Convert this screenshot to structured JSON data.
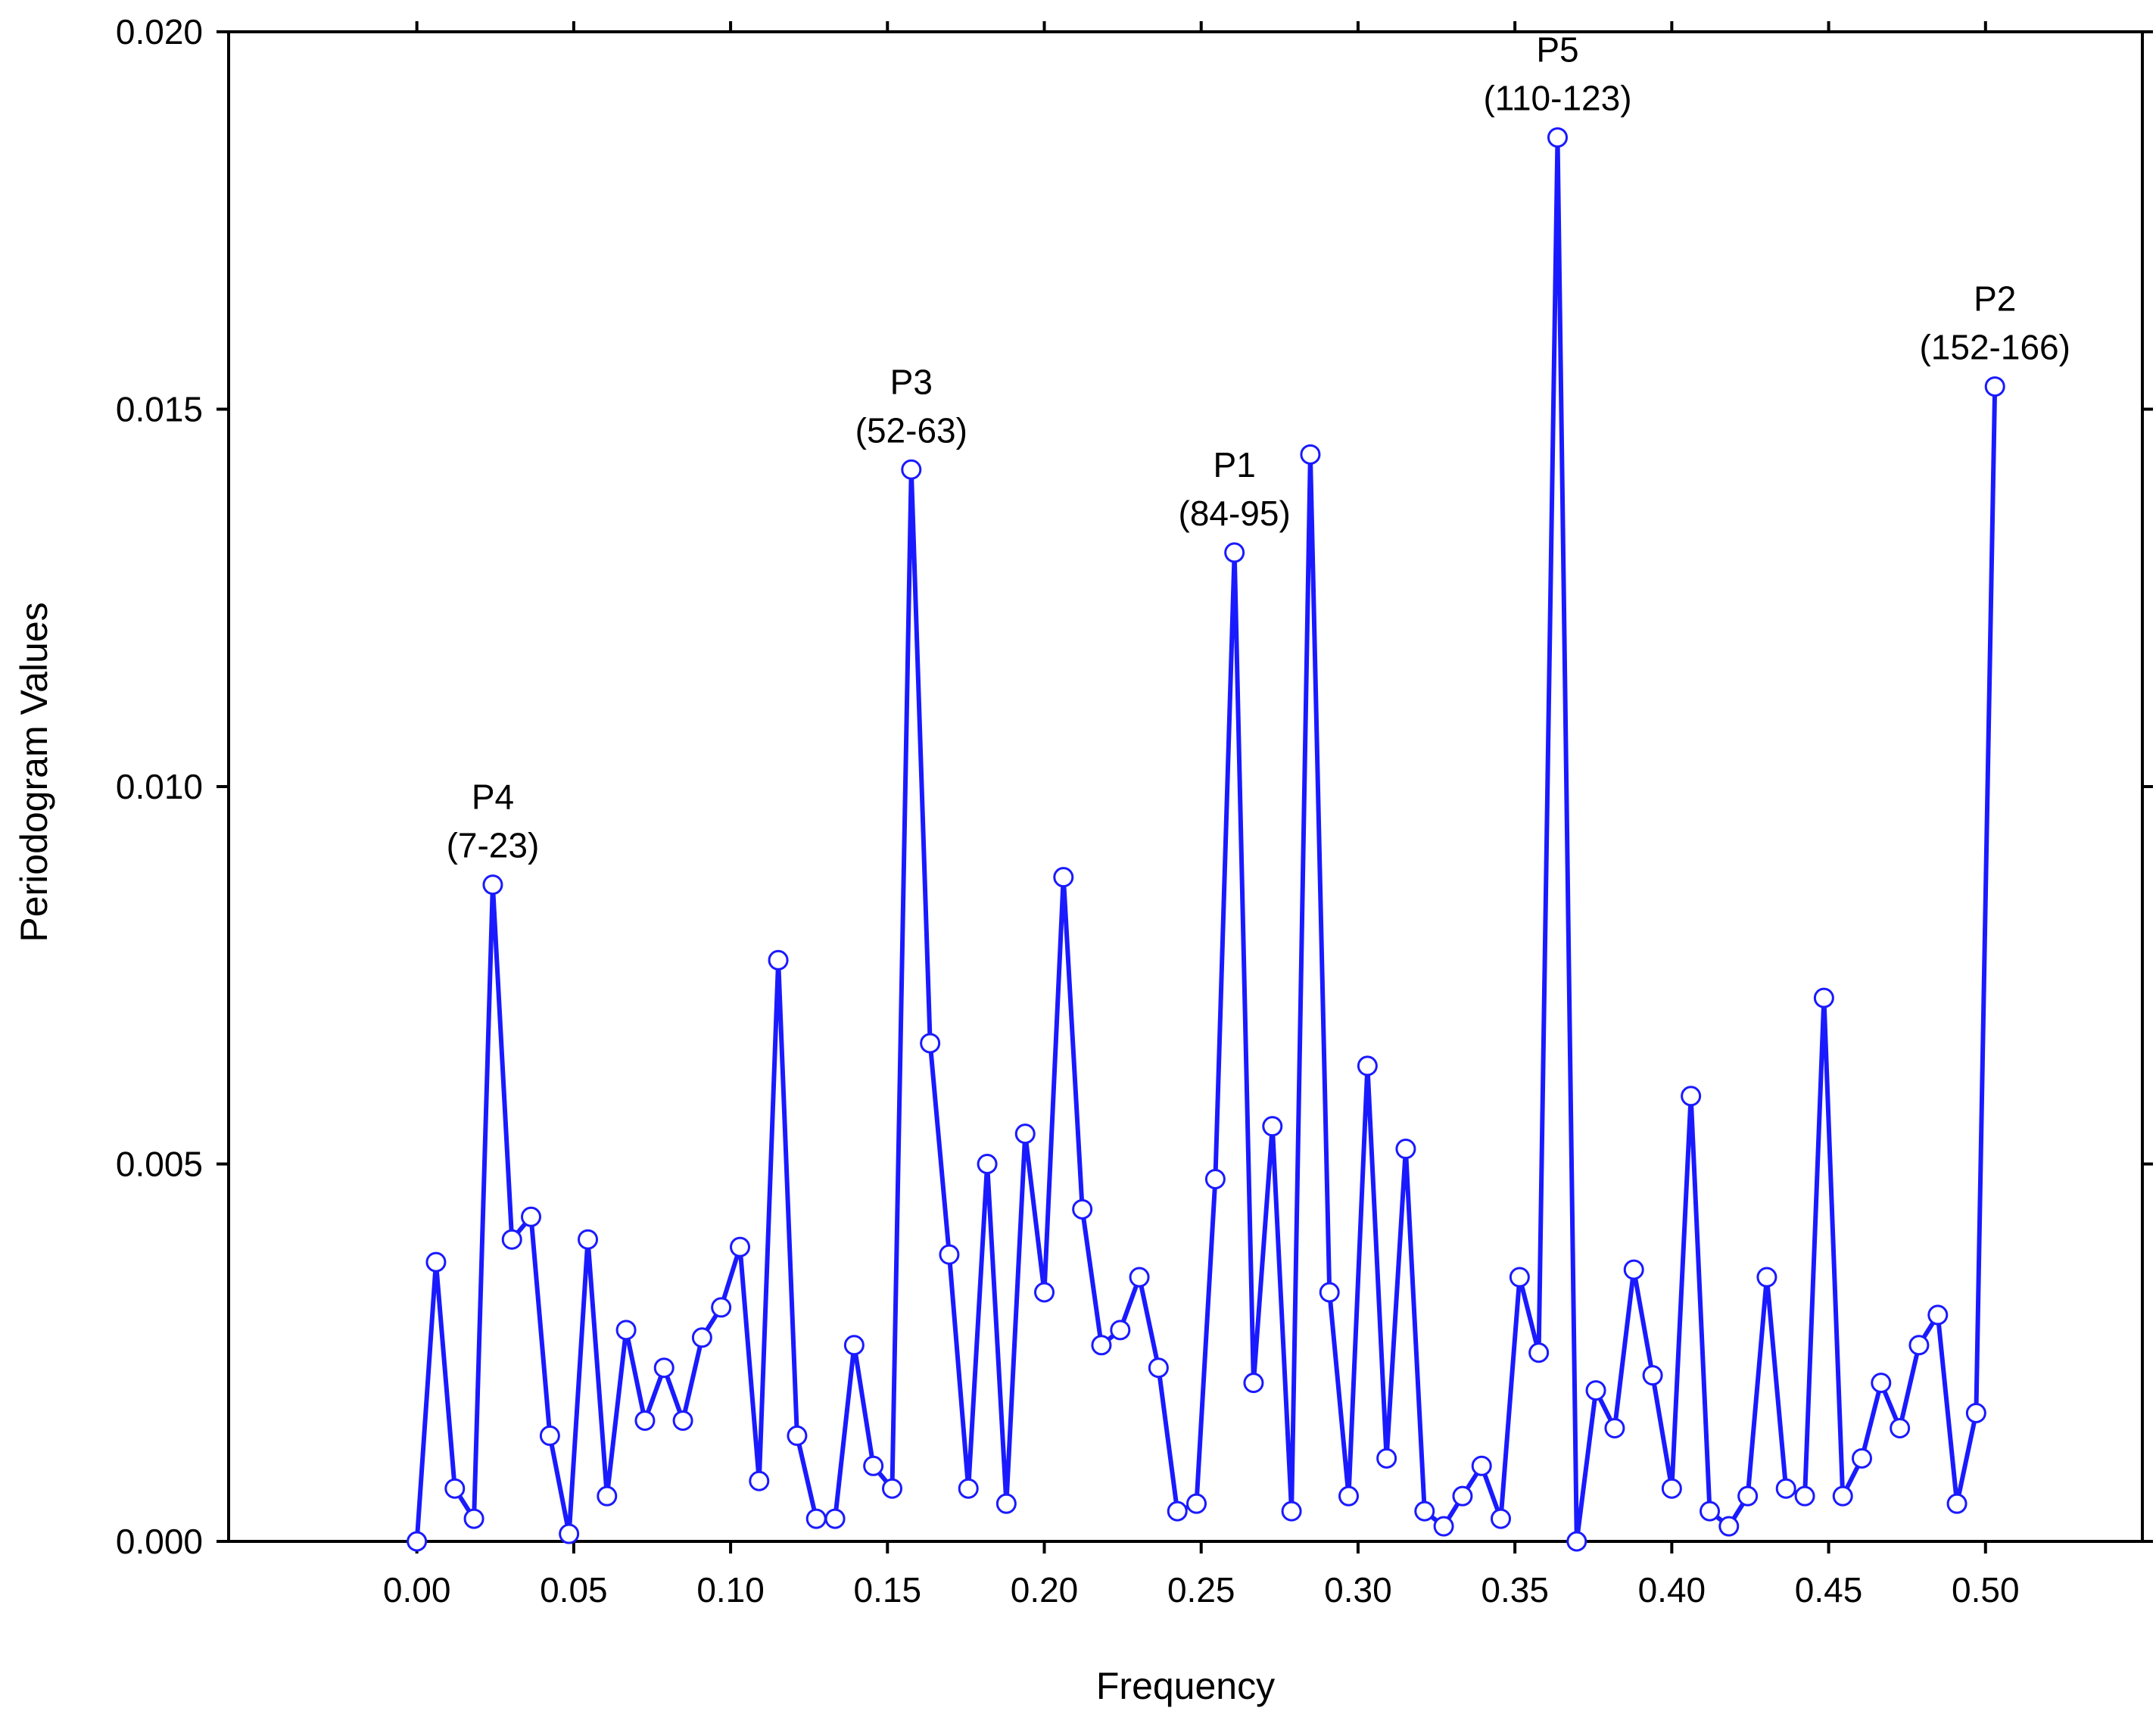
{
  "chart_data": {
    "type": "line",
    "xlabel": "Frequency",
    "ylabel": "Periodogram Values",
    "xlim": [
      -0.06,
      0.55
    ],
    "ylim": [
      0.0,
      0.02
    ],
    "xticks": [
      "0.00",
      "0.05",
      "0.10",
      "0.15",
      "0.20",
      "0.25",
      "0.30",
      "0.35",
      "0.40",
      "0.45",
      "0.50"
    ],
    "yticks": [
      "0.000",
      "0.005",
      "0.010",
      "0.015",
      "0.020"
    ],
    "grid": false,
    "legend": "none",
    "colors": {
      "line": "#1a1aff",
      "marker_fill": "#ffffff",
      "marker_stroke": "#1a1aff",
      "axes": "#000000"
    },
    "series": [
      {
        "x": [
          0.0,
          0.0061,
          0.0121,
          0.0182,
          0.0242,
          0.0303,
          0.0364,
          0.0424,
          0.0485,
          0.0545,
          0.0606,
          0.0667,
          0.0727,
          0.0788,
          0.0848,
          0.0909,
          0.097,
          0.103,
          0.1091,
          0.1152,
          0.1212,
          0.1273,
          0.1333,
          0.1394,
          0.1455,
          0.1515,
          0.1576,
          0.1636,
          0.1697,
          0.1758,
          0.1818,
          0.1879,
          0.1939,
          0.2,
          0.2061,
          0.2121,
          0.2182,
          0.2242,
          0.2303,
          0.2364,
          0.2424,
          0.2485,
          0.2545,
          0.2606,
          0.2667,
          0.2727,
          0.2788,
          0.2848,
          0.2909,
          0.297,
          0.303,
          0.3091,
          0.3152,
          0.3212,
          0.3273,
          0.3333,
          0.3394,
          0.3455,
          0.3515,
          0.3576,
          0.3636,
          0.3697,
          0.3758,
          0.3818,
          0.3879,
          0.3939,
          0.4,
          0.4061,
          0.4121,
          0.4182,
          0.4242,
          0.4303,
          0.4364,
          0.4424,
          0.4485,
          0.4545,
          0.4606,
          0.4667,
          0.4727,
          0.4788,
          0.4848,
          0.4909,
          0.497,
          0.503
        ],
        "y": [
          0.0,
          0.0037,
          0.0007,
          0.0003,
          0.0087,
          0.004,
          0.0043,
          0.0014,
          0.0001,
          0.004,
          0.0006,
          0.0028,
          0.0016,
          0.0023,
          0.0016,
          0.0027,
          0.0031,
          0.0039,
          0.0008,
          0.0077,
          0.0014,
          0.0003,
          0.0003,
          0.0026,
          0.001,
          0.0007,
          0.0142,
          0.0066,
          0.0038,
          0.0007,
          0.005,
          0.0005,
          0.0054,
          0.0033,
          0.0088,
          0.0044,
          0.0026,
          0.0028,
          0.0035,
          0.0023,
          0.0004,
          0.0005,
          0.0048,
          0.0131,
          0.0021,
          0.0055,
          0.0004,
          0.0144,
          0.0033,
          0.0006,
          0.0063,
          0.0011,
          0.0052,
          0.0004,
          0.0002,
          0.0006,
          0.001,
          0.0003,
          0.0035,
          0.0025,
          0.0186,
          0.0,
          0.002,
          0.0015,
          0.0036,
          0.0022,
          0.0007,
          0.0059,
          0.0004,
          0.0002,
          0.0006,
          0.0035,
          0.0007,
          0.0006,
          0.0072,
          0.0006,
          0.0011,
          0.0021,
          0.0015,
          0.0026,
          0.003,
          0.0005,
          0.0017,
          0.0153
        ]
      }
    ],
    "annotations": [
      {
        "label": "P4",
        "range": "(7-23)",
        "x": 0.0242,
        "y": 0.0087
      },
      {
        "label": "P3",
        "range": "(52-63)",
        "x": 0.1576,
        "y": 0.0142
      },
      {
        "label": "P1",
        "range": "(84-95)",
        "x": 0.2606,
        "y": 0.0131
      },
      {
        "label": "P5",
        "range": "(110-123)",
        "x": 0.3636,
        "y": 0.0186
      },
      {
        "label": "P2",
        "range": "(152-166)",
        "x": 0.503,
        "y": 0.0153
      }
    ]
  }
}
